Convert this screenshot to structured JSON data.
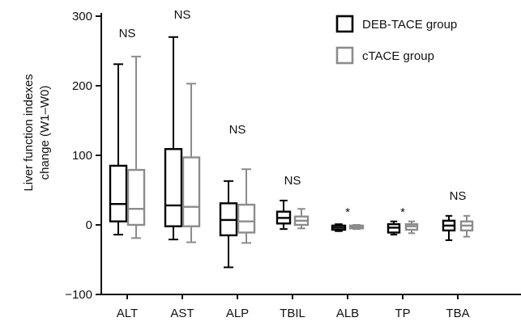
{
  "chart_data": {
    "type": "box",
    "ylabel_lines": [
      "Liver function indexes",
      "change (W1–W0)"
    ],
    "ylim": [
      -100,
      300
    ],
    "yticks": [
      -100,
      0,
      100,
      200,
      300
    ],
    "ytick_labels": [
      "−100",
      "0",
      "100",
      "200",
      "300"
    ],
    "categories": [
      "ALT",
      "AST",
      "ALP",
      "TBIL",
      "ALB",
      "TP",
      "TBA"
    ],
    "annotations": [
      "NS",
      "NS",
      "NS",
      "NS",
      "*",
      "*",
      "NS"
    ],
    "legend_position": "top-right",
    "series": [
      {
        "name": "DEB-TACE group",
        "color": "#000000",
        "boxes": [
          {
            "min": -14,
            "q1": 5,
            "median": 30,
            "q3": 85,
            "max": 231
          },
          {
            "min": -21,
            "q1": -2,
            "median": 28,
            "q3": 109,
            "max": 270
          },
          {
            "min": -61,
            "q1": -15,
            "median": 7,
            "q3": 31,
            "max": 63
          },
          {
            "min": -6,
            "q1": 2,
            "median": 10,
            "q3": 19,
            "max": 35
          },
          {
            "min": -9,
            "q1": -7,
            "median": -4,
            "q3": -1,
            "max": 1
          },
          {
            "min": -14,
            "q1": -11,
            "median": -4,
            "q3": 1,
            "max": 5
          },
          {
            "min": -22,
            "q1": -8,
            "median": -1,
            "q3": 6,
            "max": 13
          }
        ]
      },
      {
        "name": "cTACE group",
        "color": "#8c8c8c",
        "boxes": [
          {
            "min": -19,
            "q1": 0,
            "median": 23,
            "q3": 79,
            "max": 242
          },
          {
            "min": -25,
            "q1": -2,
            "median": 26,
            "q3": 97,
            "max": 203
          },
          {
            "min": -26,
            "q1": -11,
            "median": 5,
            "q3": 29,
            "max": 80
          },
          {
            "min": -5,
            "q1": 0,
            "median": 6,
            "q3": 12,
            "max": 23
          },
          {
            "min": -6,
            "q1": -5,
            "median": -3,
            "q3": -1,
            "max": 0
          },
          {
            "min": -12,
            "q1": -7,
            "median": -2,
            "q3": 1,
            "max": 5
          },
          {
            "min": -17,
            "q1": -8,
            "median": -1,
            "q3": 5,
            "max": 13
          }
        ]
      }
    ]
  }
}
